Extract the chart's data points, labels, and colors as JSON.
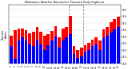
{
  "title": "Milwaukee Weather Barometric Pressure Daily High/Low",
  "high_color": "#FF0000",
  "low_color": "#0000FF",
  "background_color": "#FFFFFF",
  "ylim_min": 29.0,
  "ylim_max": 30.75,
  "yticks": [
    29.0,
    29.2,
    29.4,
    29.6,
    29.8,
    30.0,
    30.2,
    30.4,
    30.6
  ],
  "bar_width": 0.8,
  "dashed_indices": [
    16,
    17,
    18,
    19
  ],
  "days": [
    "1",
    "2",
    "3",
    "4",
    "5",
    "6",
    "7",
    "8",
    "9",
    "10",
    "11",
    "12",
    "13",
    "14",
    "15",
    "16",
    "17",
    "18",
    "19",
    "20",
    "21",
    "22",
    "23",
    "24",
    "25",
    "26",
    "27",
    "28",
    "29",
    "30"
  ],
  "highs": [
    29.82,
    30.0,
    30.05,
    30.05,
    30.0,
    29.9,
    29.95,
    30.08,
    29.95,
    29.82,
    29.88,
    29.98,
    30.12,
    29.78,
    30.05,
    30.1,
    30.42,
    29.52,
    29.42,
    29.48,
    29.55,
    29.62,
    29.72,
    29.78,
    29.68,
    30.02,
    30.1,
    30.22,
    30.32,
    30.4
  ],
  "lows": [
    29.52,
    29.15,
    29.7,
    29.78,
    29.68,
    29.58,
    29.52,
    29.72,
    29.58,
    29.42,
    29.55,
    29.68,
    29.8,
    29.48,
    29.7,
    29.78,
    29.88,
    29.28,
    29.18,
    29.22,
    29.35,
    29.42,
    29.52,
    29.57,
    29.42,
    29.75,
    29.82,
    29.92,
    30.02,
    30.1
  ]
}
